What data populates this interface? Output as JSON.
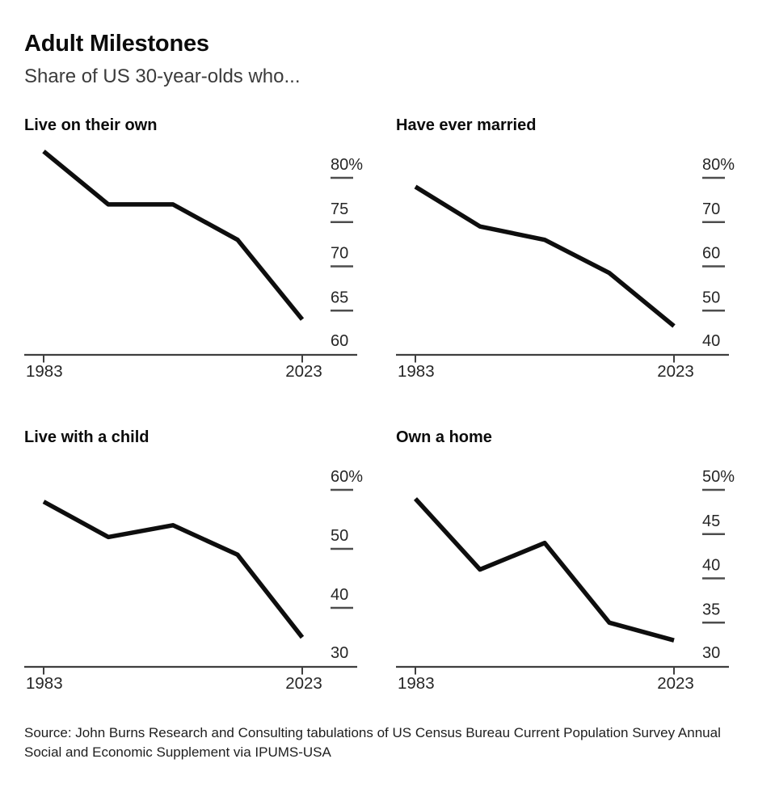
{
  "header": {
    "title": "Adult Milestones",
    "subtitle": "Share of US 30-year-olds who..."
  },
  "source": "Source: John Burns Research and Consulting tabulations of US Census Bureau Current Population Survey Annual Social and Economic Supplement via IPUMS-USA",
  "colors": {
    "background": "#ffffff",
    "series_line": "#0e0e0e",
    "axis_line": "#3f3f3f",
    "tick_dash": "#4d4d4d",
    "tick_text": "#262626",
    "title_text": "#0b0b0b",
    "subtitle_text": "#3b3b3b",
    "source_text": "#1e1e1e"
  },
  "chart_data": [
    {
      "type": "line",
      "title": "Live on their own",
      "x": [
        1983,
        1993,
        2003,
        2013,
        2023
      ],
      "values": [
        83,
        77,
        77,
        73,
        64
      ],
      "yticks": [
        80,
        75,
        70,
        65,
        60
      ],
      "ytick_labels": [
        "80%",
        "75",
        "70",
        "65",
        "60"
      ],
      "baseline": 60,
      "ylim": [
        60,
        84
      ],
      "xlim": [
        1983,
        2023
      ],
      "x_axis_labels": [
        "1983",
        "2023"
      ],
      "xlabel": "",
      "ylabel": "",
      "grid": "off",
      "legend": "none"
    },
    {
      "type": "line",
      "title": "Have ever married",
      "x": [
        1983,
        1993,
        2003,
        2013,
        2023
      ],
      "values": [
        78,
        69,
        66,
        58.5,
        46.5
      ],
      "yticks": [
        80,
        70,
        60,
        50,
        40
      ],
      "ytick_labels": [
        "80%",
        "70",
        "60",
        "50",
        "40"
      ],
      "baseline": 40,
      "ylim": [
        40,
        80
      ],
      "xlim": [
        1983,
        2023
      ],
      "x_axis_labels": [
        "1983",
        "2023"
      ],
      "xlabel": "",
      "ylabel": "",
      "grid": "off",
      "legend": "none"
    },
    {
      "type": "line",
      "title": "Live with a child",
      "x": [
        1983,
        1993,
        2003,
        2013,
        2023
      ],
      "values": [
        58,
        52,
        54,
        49,
        35
      ],
      "yticks": [
        60,
        50,
        40,
        30
      ],
      "ytick_labels": [
        "60%",
        "50",
        "40",
        "30"
      ],
      "baseline": 30,
      "ylim": [
        30,
        60
      ],
      "xlim": [
        1983,
        2023
      ],
      "x_axis_labels": [
        "1983",
        "2023"
      ],
      "xlabel": "",
      "ylabel": "",
      "grid": "off",
      "legend": "none"
    },
    {
      "type": "line",
      "title": "Own a home",
      "x": [
        1983,
        1993,
        2003,
        2013,
        2023
      ],
      "values": [
        49,
        41,
        44,
        35,
        33
      ],
      "yticks": [
        50,
        45,
        40,
        35,
        30
      ],
      "ytick_labels": [
        "50%",
        "45",
        "40",
        "35",
        "30"
      ],
      "baseline": 30,
      "ylim": [
        30,
        50
      ],
      "xlim": [
        1983,
        2023
      ],
      "x_axis_labels": [
        "1983",
        "2023"
      ],
      "xlabel": "",
      "ylabel": "",
      "grid": "off",
      "legend": "none"
    }
  ]
}
